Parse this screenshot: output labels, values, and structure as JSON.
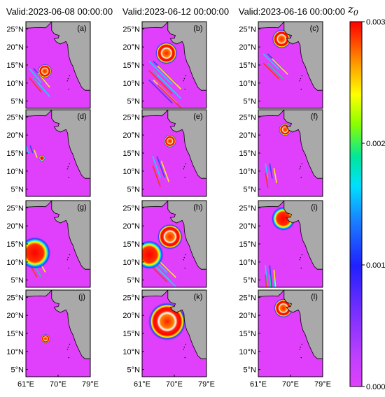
{
  "chart_data": {
    "type": "heatmap",
    "variable_label": "z",
    "variable_subscript": "0",
    "column_titles": [
      "Valid:2023-06-08 00:00:00",
      "Valid:2023-06-12 00:00:00",
      "Valid:2023-06-16 00:00:00"
    ],
    "panel_labels": [
      "(a)",
      "(b)",
      "(c)",
      "(d)",
      "(e)",
      "(f)",
      "(g)",
      "(h)",
      "(i)",
      "(j)",
      "(k)",
      "(l)"
    ],
    "rows": 4,
    "cols": 3,
    "lat_ticks": [
      "25°N",
      "20°N",
      "15°N",
      "10°N",
      "5°N"
    ],
    "lat_values": [
      25,
      20,
      15,
      10,
      5
    ],
    "lon_ticks": [
      "61°E",
      "70°E",
      "79°E"
    ],
    "lon_values": [
      61,
      70,
      79
    ],
    "lon_range": [
      61,
      79
    ],
    "lat_range": [
      3,
      27
    ],
    "colorbar": {
      "ticks": [
        "0.003",
        "0.002",
        "0.001",
        "0.000"
      ],
      "tick_values": [
        0.003,
        0.002,
        0.001,
        0.0
      ],
      "range": [
        0.0,
        0.003
      ],
      "colors": [
        "#e040fb",
        "#9c27ff",
        "#3f3fff",
        "#1e90ff",
        "#00e5ff",
        "#00e68a",
        "#7fff00",
        "#ffff00",
        "#ffa500",
        "#ff4500",
        "#ff0000"
      ]
    },
    "features": [
      {
        "panel": 0,
        "blobs": [
          {
            "lon": 66.3,
            "lat": 13.3,
            "r": 0.9,
            "v": 0.003,
            "ring": true
          }
        ],
        "streaks": [
          {
            "lon": 63.0,
            "lat": 12.0,
            "len": 5,
            "ang": -50,
            "count": 6
          }
        ]
      },
      {
        "panel": 1,
        "blobs": [
          {
            "lon": 67.8,
            "lat": 18.3,
            "r": 1.4,
            "v": 0.003,
            "ring": true
          }
        ],
        "streaks": [
          {
            "lon": 64.0,
            "lat": 14.0,
            "len": 9,
            "ang": -45,
            "count": 9
          }
        ]
      },
      {
        "panel": 2,
        "blobs": [
          {
            "lon": 67.5,
            "lat": 22.2,
            "r": 1.2,
            "v": 0.003,
            "ring": true
          }
        ],
        "streaks": [
          {
            "lon": 63.5,
            "lat": 16.0,
            "len": 6,
            "ang": -45,
            "count": 5
          }
        ]
      },
      {
        "panel": 3,
        "blobs": [
          {
            "lon": 65.5,
            "lat": 13.6,
            "r": 0.4,
            "v": 0.003,
            "ring": false
          }
        ],
        "streaks": [
          {
            "lon": 62.0,
            "lat": 15.0,
            "len": 2,
            "ang": -70,
            "count": 3
          }
        ]
      },
      {
        "panel": 4,
        "blobs": [
          {
            "lon": 68.8,
            "lat": 18.3,
            "r": 0.8,
            "v": 0.003,
            "ring": true
          }
        ],
        "streaks": [
          {
            "lon": 65.0,
            "lat": 12.0,
            "len": 6,
            "ang": -70,
            "count": 4
          }
        ]
      },
      {
        "panel": 5,
        "blobs": [
          {
            "lon": 68.5,
            "lat": 21.5,
            "r": 0.8,
            "v": 0.003,
            "ring": true
          }
        ],
        "streaks": [
          {
            "lon": 64.0,
            "lat": 10.0,
            "len": 4,
            "ang": -80,
            "count": 4
          }
        ]
      },
      {
        "panel": 6,
        "blobs": [
          {
            "lon": 63.5,
            "lat": 12.5,
            "r": 2.0,
            "v": 0.003,
            "ring": false
          }
        ],
        "streaks": [
          {
            "lon": 63.0,
            "lat": 10.0,
            "len": 4,
            "ang": -60,
            "count": 5
          }
        ]
      },
      {
        "panel": 7,
        "blobs": [
          {
            "lon": 68.8,
            "lat": 17.0,
            "r": 1.6,
            "v": 0.003,
            "ring": true
          },
          {
            "lon": 63.0,
            "lat": 12.0,
            "r": 1.8,
            "v": 0.003,
            "ring": false
          }
        ],
        "streaks": [
          {
            "lon": 64.0,
            "lat": 10.0,
            "len": 7,
            "ang": -45,
            "count": 6
          }
        ]
      },
      {
        "panel": 8,
        "blobs": [
          {
            "lon": 68.0,
            "lat": 22.0,
            "r": 1.5,
            "v": 0.003,
            "ring": false
          }
        ],
        "streaks": [
          {
            "lon": 64.0,
            "lat": 7.0,
            "len": 6,
            "ang": -85,
            "count": 6
          }
        ]
      },
      {
        "panel": 9,
        "blobs": [
          {
            "lon": 66.5,
            "lat": 13.5,
            "r": 0.6,
            "v": 0.003,
            "ring": true
          }
        ],
        "streaks": []
      },
      {
        "panel": 10,
        "blobs": [
          {
            "lon": 68.0,
            "lat": 18.3,
            "r": 2.4,
            "v": 0.003,
            "ring": true
          }
        ],
        "streaks": []
      },
      {
        "panel": 11,
        "blobs": [
          {
            "lon": 68.0,
            "lat": 22.0,
            "r": 1.2,
            "v": 0.003,
            "ring": true
          }
        ],
        "streaks": []
      }
    ]
  }
}
